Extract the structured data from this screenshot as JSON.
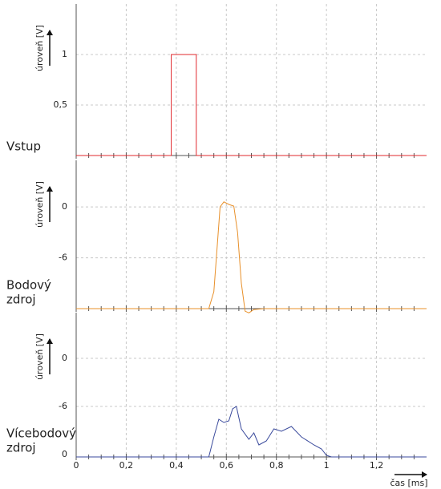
{
  "chart_data": [
    {
      "type": "line",
      "label": [
        "Vstup"
      ],
      "label_color": "#e0282e",
      "ylabel": "úroveň [V]",
      "xlim": [
        0,
        1.4
      ],
      "xticks": [
        0,
        0.2,
        0.4,
        0.6,
        0.8,
        1,
        1.2
      ],
      "xminorticks": [
        0.05,
        0.1,
        0.15,
        0.25,
        0.3,
        0.35,
        0.45,
        0.5,
        0.55,
        0.65,
        0.7,
        0.75,
        0.85,
        0.9,
        0.95,
        1.05,
        1.1,
        1.15,
        1.25,
        1.3,
        1.35
      ],
      "ylim": [
        0,
        1.5
      ],
      "yticks": [
        {
          "value": 0.5,
          "label": "0,5"
        },
        1
      ],
      "grid": true,
      "series": [
        {
          "color": "#e0282e",
          "x": [
            0,
            0.38,
            0.38,
            0.48,
            0.48,
            1.4
          ],
          "values": [
            0,
            0,
            1,
            1,
            0,
            0
          ]
        }
      ]
    },
    {
      "type": "line",
      "label": [
        "Bodový",
        "zdroj"
      ],
      "label_color": "#e8902a",
      "ylabel": "úroveň [V]",
      "xlim": [
        0,
        1.4
      ],
      "xticks": [
        0,
        0.2,
        0.4,
        0.6,
        0.8,
        1,
        1.2
      ],
      "xminorticks": [
        0.05,
        0.1,
        0.15,
        0.25,
        0.3,
        0.35,
        0.45,
        0.5,
        0.55,
        0.65,
        0.7,
        0.75,
        0.85,
        0.9,
        0.95,
        1.05,
        1.1,
        1.15,
        1.25,
        1.3,
        1.35
      ],
      "ylim": [
        -12,
        5.5
      ],
      "yticks": [
        -6,
        0
      ],
      "grid": true,
      "series": [
        {
          "color": "#e8902a",
          "x": [
            0,
            0.53,
            0.55,
            0.565,
            0.575,
            0.59,
            0.61,
            0.63,
            0.645,
            0.66,
            0.675,
            0.69,
            0.71,
            0.75,
            1.4
          ],
          "values": [
            -12,
            -12,
            -10,
            -4,
            0,
            0.6,
            0.3,
            0.1,
            -3,
            -9,
            -12.3,
            -12.5,
            -12.1,
            -12,
            -12
          ]
        }
      ]
    },
    {
      "type": "line",
      "label": [
        "Vícebodový",
        "zdroj"
      ],
      "label_color": "#3a4a9c",
      "ylabel": "úroveň [V]",
      "xlabel": "čas [ms]",
      "baseline_label": "0",
      "xlim": [
        0,
        1.4
      ],
      "xticks": [
        0,
        {
          "value": 0.2,
          "label": "0,2"
        },
        {
          "value": 0.4,
          "label": "0,4"
        },
        {
          "value": 0.6,
          "label": "0,6"
        },
        {
          "value": 0.8,
          "label": "0,8"
        },
        1,
        {
          "value": 1.2,
          "label": "1,2"
        }
      ],
      "xminorticks": [
        0.05,
        0.1,
        0.15,
        0.25,
        0.3,
        0.35,
        0.45,
        0.5,
        0.55,
        0.65,
        0.7,
        0.75,
        0.85,
        0.9,
        0.95,
        1.05,
        1.1,
        1.15,
        1.25,
        1.3,
        1.35
      ],
      "ylim": [
        -12.3,
        5.7
      ],
      "yticks": [
        -6,
        0
      ],
      "grid": true,
      "series": [
        {
          "color": "#3a4a9c",
          "x": [
            0,
            0.53,
            0.55,
            0.57,
            0.59,
            0.61,
            0.625,
            0.64,
            0.66,
            0.69,
            0.71,
            0.73,
            0.76,
            0.79,
            0.82,
            0.86,
            0.9,
            0.95,
            0.98,
            1.0,
            1.02,
            1.4
          ],
          "values": [
            -12.3,
            -12.3,
            -9.8,
            -7.6,
            -8,
            -7.8,
            -6.3,
            -6,
            -8.8,
            -10.1,
            -9.3,
            -10.8,
            -10.3,
            -8.8,
            -9.1,
            -8.5,
            -9.8,
            -10.8,
            -11.3,
            -12.1,
            -12.3,
            -12.3
          ]
        }
      ]
    }
  ]
}
